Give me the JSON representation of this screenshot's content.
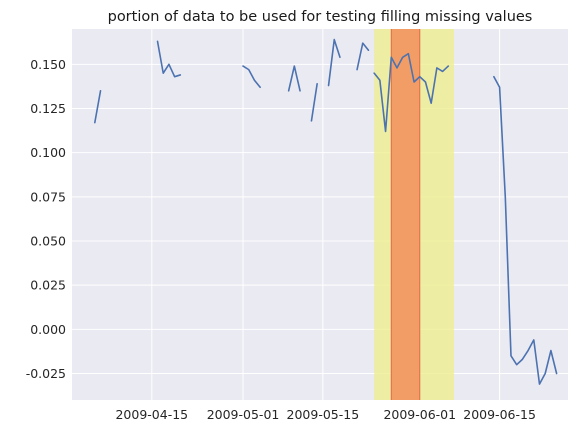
{
  "chart_data": {
    "type": "line",
    "title": "portion of data to be used for testing filling missing values",
    "xlabel": "",
    "ylabel": "",
    "xlim": [
      "2009-04-01",
      "2009-06-27"
    ],
    "ylim": [
      -0.04,
      0.17
    ],
    "grid": true,
    "x_ticks": [
      "2009-04-15",
      "2009-05-01",
      "2009-05-15",
      "2009-06-01",
      "2009-06-15"
    ],
    "y_ticks": [
      "-0.025",
      "0.000",
      "0.025",
      "0.050",
      "0.075",
      "0.100",
      "0.125",
      "0.150"
    ],
    "y_tick_values": [
      -0.025,
      0.0,
      0.025,
      0.05,
      0.075,
      0.1,
      0.125,
      0.15
    ],
    "colors": {
      "line": "#4c72b0",
      "background": "#eaeaf2",
      "span_outer": "#eeee88",
      "span_inner": "#f28e5c"
    },
    "spans": [
      {
        "name": "outer",
        "start": "2009-05-24",
        "end": "2009-06-07",
        "color": "#eeee88"
      },
      {
        "name": "inner",
        "start": "2009-05-27",
        "end": "2009-06-01",
        "color": "#f28e5c"
      }
    ],
    "series": [
      {
        "segments": [
          [
            [
              "2009-04-05",
              0.117
            ],
            [
              "2009-04-06",
              0.135
            ]
          ],
          [
            [
              "2009-04-16",
              0.163
            ],
            [
              "2009-04-17",
              0.145
            ],
            [
              "2009-04-18",
              0.15
            ],
            [
              "2009-04-19",
              0.143
            ],
            [
              "2009-04-20",
              0.144
            ]
          ],
          [
            [
              "2009-05-01",
              0.149
            ],
            [
              "2009-05-02",
              0.147
            ],
            [
              "2009-05-03",
              0.141
            ],
            [
              "2009-05-04",
              0.137
            ]
          ],
          [
            [
              "2009-05-09",
              0.135
            ],
            [
              "2009-05-10",
              0.149
            ],
            [
              "2009-05-11",
              0.135
            ]
          ],
          [
            [
              "2009-05-13",
              0.118
            ],
            [
              "2009-05-14",
              0.139
            ]
          ],
          [
            [
              "2009-05-16",
              0.138
            ],
            [
              "2009-05-17",
              0.164
            ],
            [
              "2009-05-18",
              0.154
            ]
          ],
          [
            [
              "2009-05-21",
              0.147
            ],
            [
              "2009-05-22",
              0.162
            ],
            [
              "2009-05-23",
              0.158
            ]
          ],
          [
            [
              "2009-05-24",
              0.145
            ],
            [
              "2009-05-25",
              0.141
            ],
            [
              "2009-05-26",
              0.112
            ],
            [
              "2009-05-27",
              0.154
            ],
            [
              "2009-05-28",
              0.148
            ],
            [
              "2009-05-29",
              0.154
            ],
            [
              "2009-05-30",
              0.156
            ],
            [
              "2009-05-31",
              0.14
            ],
            [
              "2009-06-01",
              0.143
            ],
            [
              "2009-06-02",
              0.14
            ],
            [
              "2009-06-03",
              0.128
            ],
            [
              "2009-06-04",
              0.148
            ],
            [
              "2009-06-05",
              0.146
            ],
            [
              "2009-06-06",
              0.149
            ]
          ],
          [
            [
              "2009-06-14",
              0.143
            ],
            [
              "2009-06-15",
              0.137
            ],
            [
              "2009-06-16",
              0.075
            ],
            [
              "2009-06-17",
              -0.015
            ],
            [
              "2009-06-18",
              -0.02
            ],
            [
              "2009-06-19",
              -0.017
            ],
            [
              "2009-06-20",
              -0.012
            ],
            [
              "2009-06-21",
              -0.006
            ],
            [
              "2009-06-22",
              -0.031
            ],
            [
              "2009-06-23",
              -0.025
            ],
            [
              "2009-06-24",
              -0.012
            ],
            [
              "2009-06-25",
              -0.025
            ]
          ]
        ]
      }
    ]
  }
}
